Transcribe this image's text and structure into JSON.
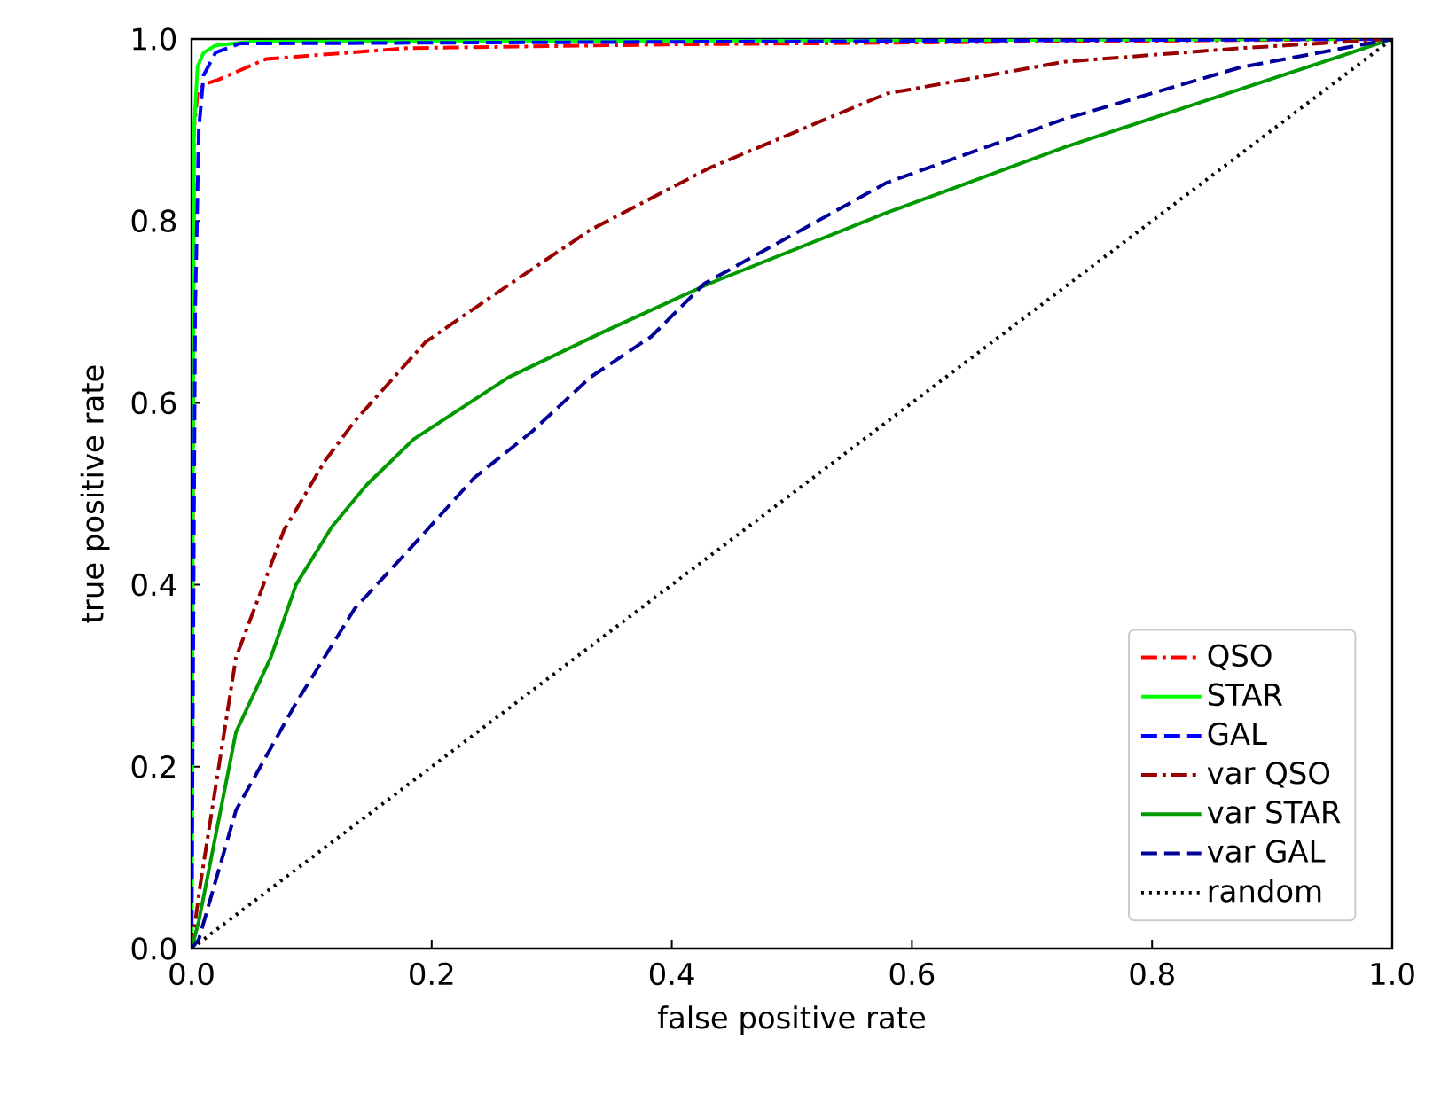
{
  "chart_data": {
    "type": "line",
    "xlabel": "false positive rate",
    "ylabel": "true positive rate",
    "xlim": [
      0,
      1
    ],
    "ylim": [
      0,
      1
    ],
    "xticks": [
      {
        "value": 0,
        "label": "0.0"
      },
      0.2,
      0.4,
      0.6,
      0.8,
      {
        "value": 1,
        "label": "1.0"
      }
    ],
    "yticks": [
      {
        "value": 0,
        "label": "0.0"
      },
      0.2,
      0.4,
      0.6,
      0.8,
      {
        "value": 1,
        "label": "1.0"
      }
    ],
    "grid": false,
    "legend": "bottom right",
    "marker": "none",
    "series": [
      {
        "name": "QSO",
        "color": "#ff0000",
        "line_style": "dashdot",
        "x": [
          0,
          0.002,
          0.005,
          0.01,
          0.022,
          0.062,
          0.18,
          0.4,
          0.7,
          1
        ],
        "values": [
          0,
          0.9,
          0.94,
          0.95,
          0.955,
          0.978,
          0.99,
          0.994,
          0.997,
          1
        ]
      },
      {
        "name": "STAR",
        "color": "#00ff00",
        "line_style": "solid",
        "x": [
          0,
          0.002,
          0.005,
          0.01,
          0.02,
          0.05,
          1
        ],
        "values": [
          0,
          0.9,
          0.97,
          0.985,
          0.993,
          0.997,
          1
        ]
      },
      {
        "name": "GAL",
        "color": "#0000ff",
        "line_style": "dashed",
        "x": [
          0,
          0.003,
          0.006,
          0.01,
          0.02,
          0.04,
          1
        ],
        "values": [
          0,
          0.7,
          0.9,
          0.96,
          0.985,
          0.995,
          1
        ]
      },
      {
        "name": "var QSO",
        "color": "#990000",
        "line_style": "dashdot",
        "x": [
          0,
          0.007,
          0.037,
          0.077,
          0.111,
          0.136,
          0.195,
          0.25,
          0.332,
          0.431,
          0.579,
          0.727,
          0.874,
          1
        ],
        "values": [
          0,
          0.068,
          0.32,
          0.46,
          0.536,
          0.58,
          0.667,
          0.717,
          0.79,
          0.858,
          0.94,
          0.975,
          0.99,
          1
        ]
      },
      {
        "name": "var STAR",
        "color": "#009900",
        "line_style": "solid",
        "x": [
          0,
          0.006,
          0.037,
          0.066,
          0.087,
          0.117,
          0.146,
          0.185,
          0.264,
          0.343,
          0.431,
          0.579,
          0.727,
          0.874,
          1
        ],
        "values": [
          0,
          0.03,
          0.238,
          0.32,
          0.4,
          0.464,
          0.51,
          0.56,
          0.628,
          0.678,
          0.731,
          0.809,
          0.881,
          0.945,
          1
        ]
      },
      {
        "name": "var GAL",
        "color": "#000099",
        "line_style": "dashed",
        "x": [
          0,
          0.006,
          0.037,
          0.087,
          0.136,
          0.185,
          0.235,
          0.284,
          0.332,
          0.383,
          0.427,
          0.579,
          0.727,
          0.874,
          1
        ],
        "values": [
          0,
          0.01,
          0.152,
          0.27,
          0.374,
          0.444,
          0.517,
          0.569,
          0.628,
          0.673,
          0.731,
          0.842,
          0.912,
          0.969,
          1
        ]
      },
      {
        "name": "random",
        "color": "#000000",
        "line_style": "dotted",
        "x": [
          0,
          1
        ],
        "values": [
          0,
          1
        ]
      }
    ]
  }
}
